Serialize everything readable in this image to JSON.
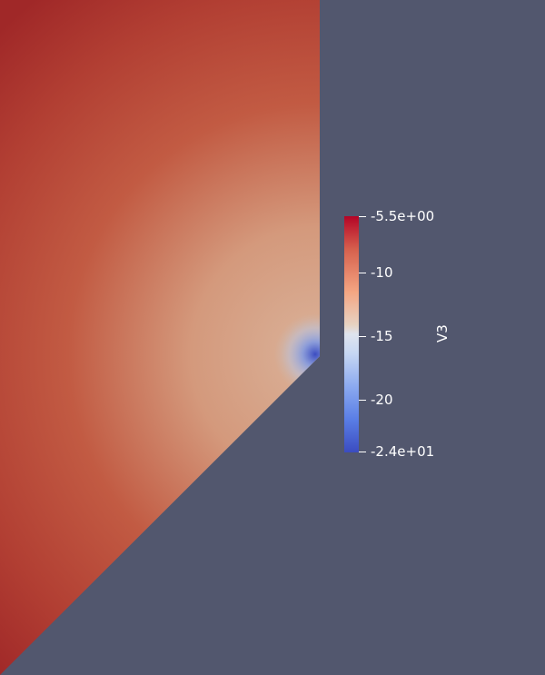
{
  "app": {
    "background_color": "#52576e"
  },
  "field": {
    "colormap": "cool-to-warm",
    "color_high": "#b40426",
    "color_mid": "#dddddd",
    "color_low": "#3b4cc0",
    "region_color_dark_red": "#a82b2b",
    "region_color_peach": "#d4997c",
    "singular_point_color": "#4a63d4"
  },
  "colorbar": {
    "title": "V3",
    "labels": {
      "max": "-5.5e+00",
      "t1": "-10",
      "t2": "-15",
      "t3": "-20",
      "min": "-2.4e+01"
    },
    "range": [
      -24,
      -5.5
    ]
  }
}
